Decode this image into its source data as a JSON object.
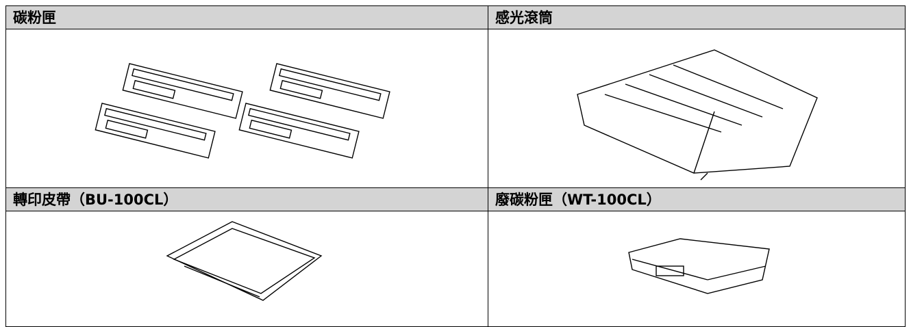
{
  "table": {
    "rows": [
      [
        "碳粉匣",
        "感光滾筒"
      ],
      [
        "轉印皮帶（BU-100CL）",
        "廢碳粉匣（WT-100CL）"
      ]
    ]
  }
}
